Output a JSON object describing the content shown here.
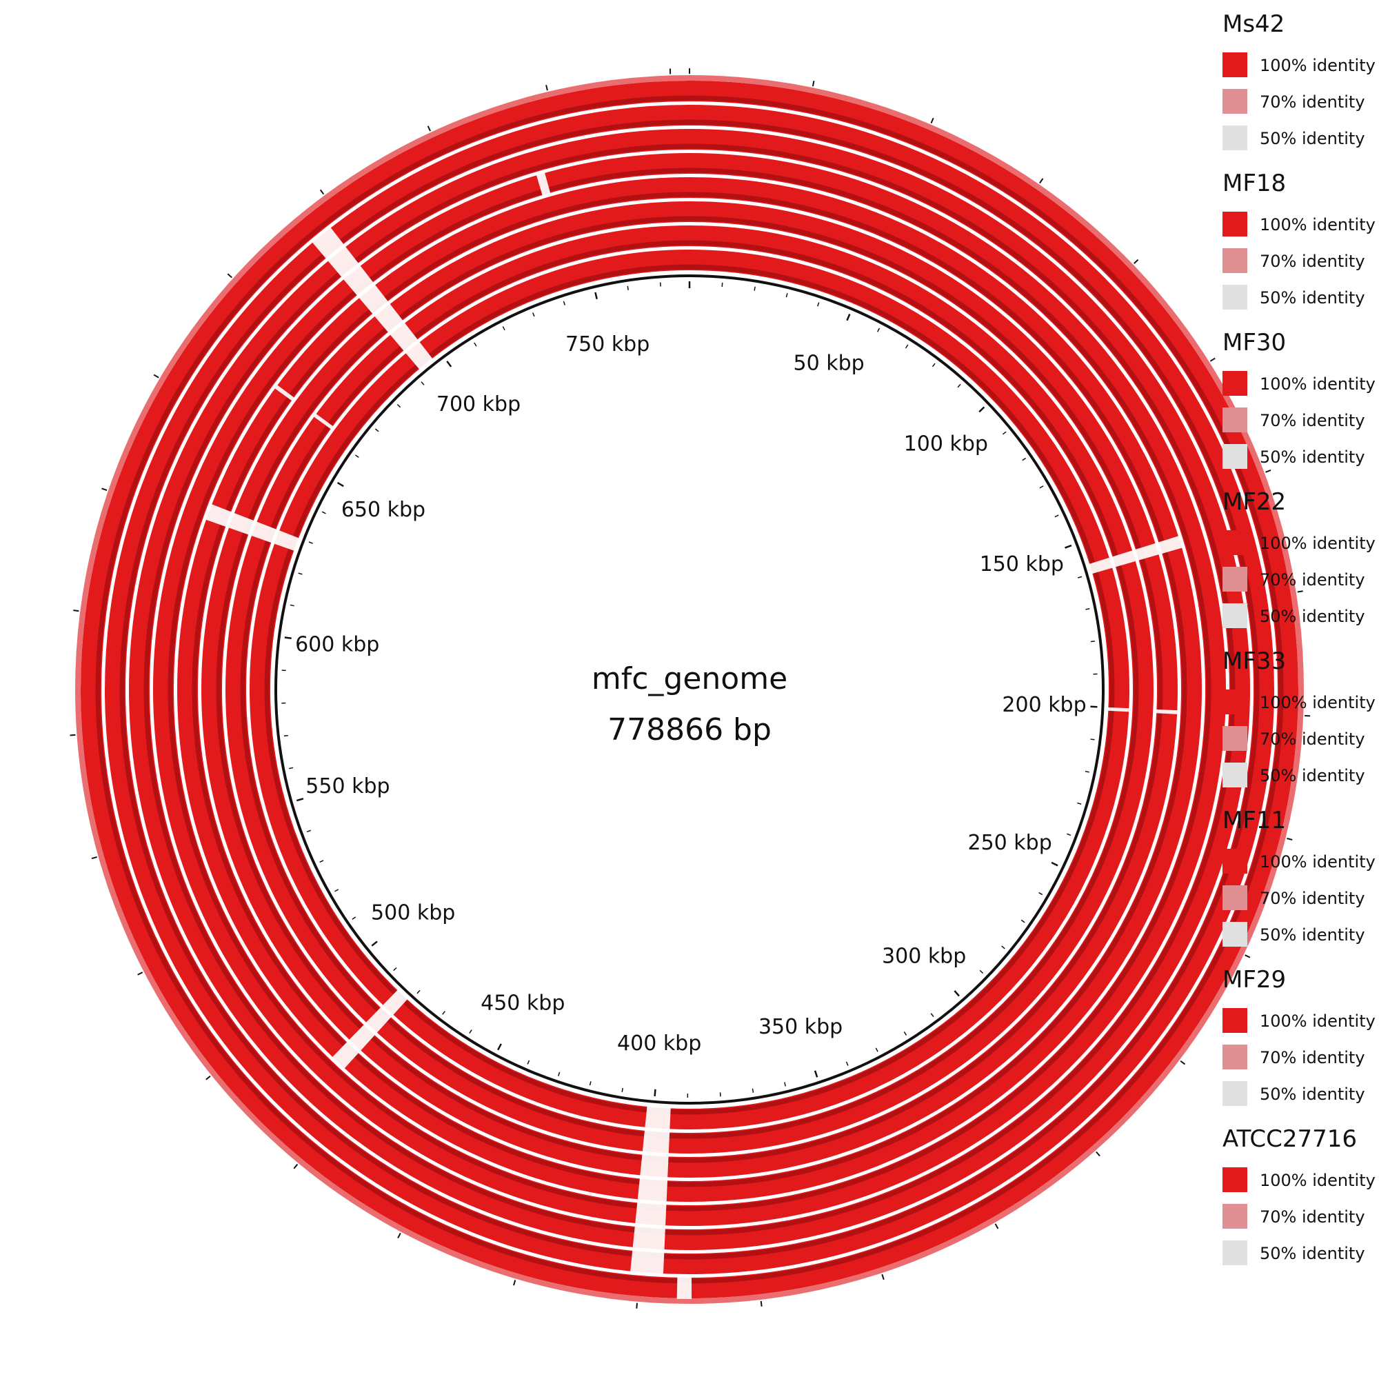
{
  "genome": {
    "name": "mfc_genome",
    "length_label": "778866 bp",
    "length_bp": 778866
  },
  "position_labels": [
    "50 kbp",
    "100 kbp",
    "150 kbp",
    "200 kbp",
    "250 kbp",
    "300 kbp",
    "350 kbp",
    "400 kbp",
    "450 kbp",
    "500 kbp",
    "550 kbp",
    "600 kbp",
    "650 kbp",
    "700 kbp",
    "750 kbp"
  ],
  "label_positions_kbp": [
    50,
    100,
    150,
    200,
    250,
    300,
    350,
    400,
    450,
    500,
    550,
    600,
    650,
    700,
    750
  ],
  "colors": {
    "identity_100": "#e31a1c",
    "identity_70": "#e08f92",
    "identity_50": "#e0e0e0",
    "ring_dark": "#b31014",
    "backbone": "#111111"
  },
  "legend": [
    {
      "name": "Ms42",
      "levels": [
        "100% identity",
        "70% identity",
        "50% identity"
      ]
    },
    {
      "name": "MF18",
      "levels": [
        "100% identity",
        "70% identity",
        "50% identity"
      ]
    },
    {
      "name": "MF30",
      "levels": [
        "100% identity",
        "70% identity",
        "50% identity"
      ]
    },
    {
      "name": "MF22",
      "levels": [
        "100% identity",
        "70% identity",
        "50% identity"
      ]
    },
    {
      "name": "MF33",
      "levels": [
        "100% identity",
        "70% identity",
        "50% identity"
      ]
    },
    {
      "name": "MF11",
      "levels": [
        "100% identity",
        "70% identity",
        "50% identity"
      ]
    },
    {
      "name": "MF29",
      "levels": [
        "100% identity",
        "70% identity",
        "50% identity"
      ]
    },
    {
      "name": "ATCC27716",
      "levels": [
        "100% identity",
        "70% identity",
        "50% identity"
      ]
    }
  ],
  "gaps_kbp": [
    {
      "ring": 0,
      "start": 692,
      "end": 697
    },
    {
      "ring": 1,
      "start": 692,
      "end": 697
    },
    {
      "ring": 2,
      "start": 692,
      "end": 697
    },
    {
      "ring": 3,
      "start": 692,
      "end": 697
    },
    {
      "ring": 4,
      "start": 692,
      "end": 697
    },
    {
      "ring": 5,
      "start": 692,
      "end": 697
    },
    {
      "ring": 6,
      "start": 692,
      "end": 697
    },
    {
      "ring": 4,
      "start": 743,
      "end": 745
    },
    {
      "ring": 0,
      "start": 626,
      "end": 630
    },
    {
      "ring": 1,
      "start": 626,
      "end": 630
    },
    {
      "ring": 2,
      "start": 626,
      "end": 630
    },
    {
      "ring": 3,
      "start": 626,
      "end": 630
    },
    {
      "ring": 0,
      "start": 481,
      "end": 485
    },
    {
      "ring": 1,
      "start": 481,
      "end": 485
    },
    {
      "ring": 2,
      "start": 481,
      "end": 485
    },
    {
      "ring": 3,
      "start": 481,
      "end": 485
    },
    {
      "ring": 0,
      "start": 395,
      "end": 402
    },
    {
      "ring": 1,
      "start": 395,
      "end": 402
    },
    {
      "ring": 2,
      "start": 395,
      "end": 402
    },
    {
      "ring": 3,
      "start": 395,
      "end": 402
    },
    {
      "ring": 4,
      "start": 395,
      "end": 402
    },
    {
      "ring": 5,
      "start": 395,
      "end": 402
    },
    {
      "ring": 6,
      "start": 395,
      "end": 402
    },
    {
      "ring": 7,
      "start": 389,
      "end": 392
    },
    {
      "ring": 0,
      "start": 157,
      "end": 160
    },
    {
      "ring": 1,
      "start": 157,
      "end": 160
    },
    {
      "ring": 2,
      "start": 157,
      "end": 160
    },
    {
      "ring": 3,
      "start": 157,
      "end": 160
    },
    {
      "ring": 0,
      "start": 200,
      "end": 201
    },
    {
      "ring": 2,
      "start": 200,
      "end": 201
    },
    {
      "ring": 1,
      "start": 662,
      "end": 663
    },
    {
      "ring": 3,
      "start": 662,
      "end": 663
    }
  ]
}
